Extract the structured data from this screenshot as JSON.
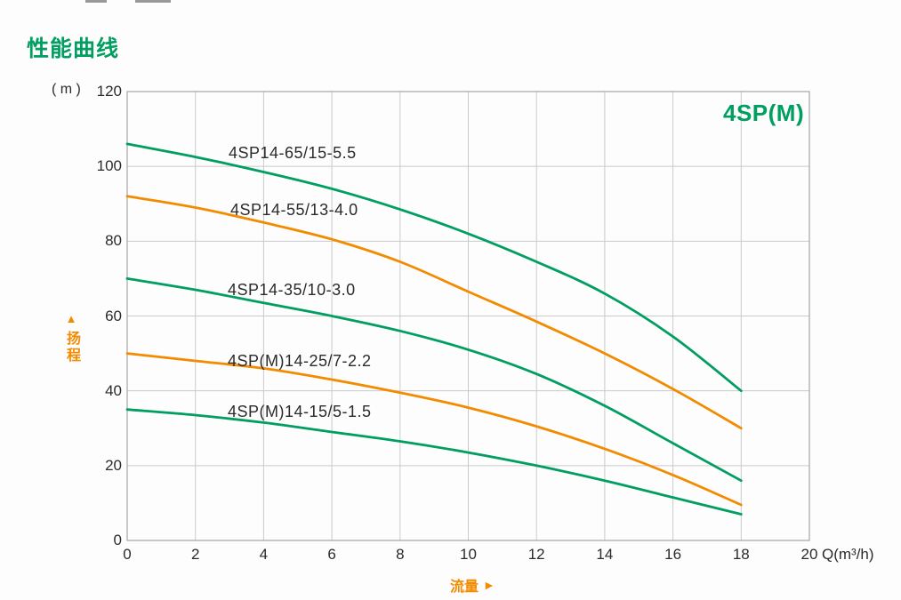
{
  "page_title": "性能曲线",
  "model_label": "4SP(M)",
  "colors": {
    "green": "#009e60",
    "orange": "#f28b00",
    "text": "#2b2b2b",
    "grid": "#cacaca",
    "border": "#a6a6a6"
  },
  "chart_data": {
    "type": "line",
    "title": "性能曲线",
    "model_label": "4SP(M)",
    "xlabel": "Q(m³/h)",
    "ylabel_unit": "( m )",
    "x_axis_caption": {
      "text": "流量",
      "arrow": "►"
    },
    "y_axis_caption": {
      "text": "扬程",
      "arrow": "▲"
    },
    "xlim": [
      0,
      20
    ],
    "ylim": [
      0,
      120
    ],
    "x_ticks": [
      0,
      2,
      4,
      6,
      8,
      10,
      12,
      14,
      16,
      18,
      20
    ],
    "y_ticks": [
      0,
      20,
      40,
      60,
      80,
      100,
      120
    ],
    "grid": true,
    "legend_position": "inline-labels",
    "x": [
      0,
      2,
      4,
      6,
      8,
      10,
      12,
      14,
      16,
      18
    ],
    "series": [
      {
        "name": "4SP14-65/15-5.5",
        "color": "#009e60",
        "values": [
          106,
          102.5,
          98.5,
          94,
          88.5,
          82,
          74.5,
          66,
          54.5,
          40
        ]
      },
      {
        "name": "4SP14-55/13-4.0",
        "color": "#f28b00",
        "values": [
          92,
          89,
          85,
          80.5,
          74.5,
          66.5,
          58.5,
          50,
          40.5,
          30
        ]
      },
      {
        "name": "4SP14-35/10-3.0",
        "color": "#009e60",
        "values": [
          70,
          67,
          63.5,
          60,
          56,
          51,
          44.5,
          36,
          26,
          16
        ]
      },
      {
        "name": "4SP(M)14-25/7-2.2",
        "color": "#f28b00",
        "values": [
          50,
          48,
          46,
          43,
          39.5,
          35.5,
          30.5,
          24.5,
          17.5,
          9.5
        ]
      },
      {
        "name": "4SP(M)14-15/5-1.5",
        "color": "#009e60",
        "values": [
          35,
          33.5,
          31.5,
          29,
          26.5,
          23.5,
          20,
          16,
          11.5,
          7
        ]
      }
    ]
  }
}
